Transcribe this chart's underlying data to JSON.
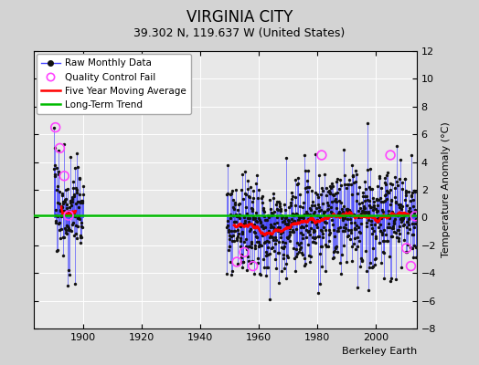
{
  "title": "VIRGINIA CITY",
  "subtitle": "39.302 N, 119.637 W (United States)",
  "ylabel": "Temperature Anomaly (°C)",
  "credit": "Berkeley Earth",
  "ylim": [
    -8,
    12
  ],
  "xlim": [
    1883,
    2014
  ],
  "yticks": [
    -8,
    -6,
    -4,
    -2,
    0,
    2,
    4,
    6,
    8,
    10,
    12
  ],
  "xticks": [
    1900,
    1920,
    1940,
    1960,
    1980,
    2000
  ],
  "bg_color": "#d3d3d3",
  "plot_bg_color": "#e8e8e8",
  "grid_color": "#ffffff",
  "raw_color": "#4444ff",
  "qc_color": "#ff44ff",
  "moving_avg_color": "#ff0000",
  "trend_color": "#00bb00",
  "dot_color": "#111111",
  "raw_linewidth": 0.6,
  "moving_avg_linewidth": 1.8,
  "trend_linewidth": 1.8,
  "dot_size": 6,
  "qc_size": 50,
  "title_fontsize": 12,
  "subtitle_fontsize": 9,
  "ylabel_fontsize": 8,
  "tick_fontsize": 8,
  "legend_fontsize": 7.5,
  "credit_fontsize": 8,
  "seed": 17,
  "early_start": 1890.0,
  "early_end": 1900.0,
  "main_start": 1949.0,
  "main_end": 2014.0,
  "trend_y": 0.15,
  "moving_avg_window": 60,
  "qc_early": [
    [
      1890.5,
      6.5
    ],
    [
      1892.0,
      5.0
    ],
    [
      1893.5,
      3.0
    ],
    [
      1895.0,
      0.15
    ]
  ],
  "qc_main": [
    [
      1952.5,
      -3.2
    ],
    [
      1955.0,
      -2.5
    ],
    [
      1958.0,
      -3.5
    ],
    [
      1981.5,
      4.5
    ],
    [
      2005.0,
      4.5
    ],
    [
      2010.5,
      -2.2
    ],
    [
      2012.0,
      -3.5
    ],
    [
      2013.5,
      0.1
    ]
  ]
}
